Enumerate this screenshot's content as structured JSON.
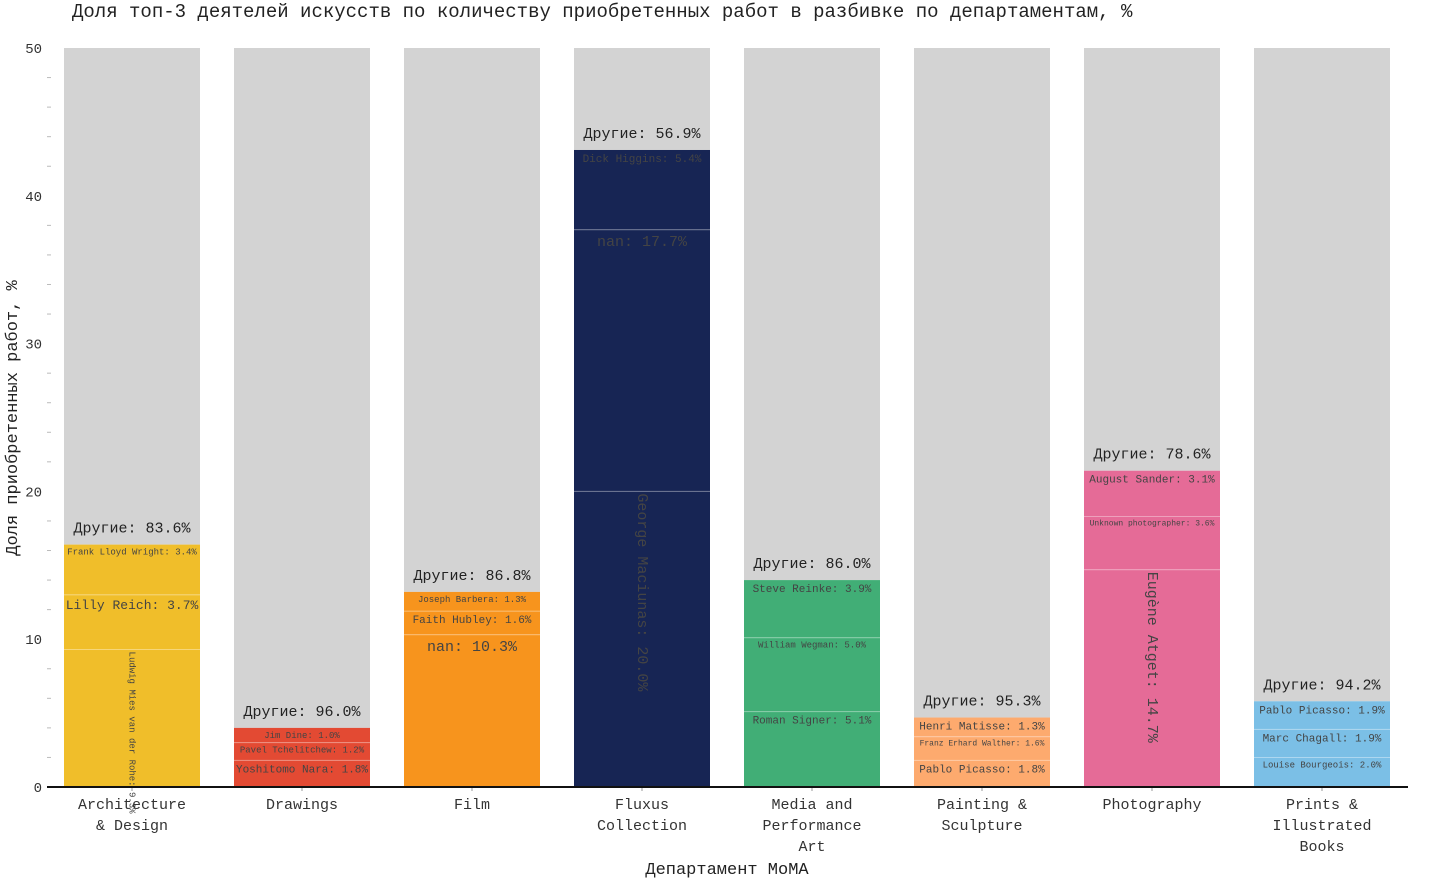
{
  "chart_data": {
    "type": "bar",
    "stacked": true,
    "title": "Доля топ-3 деятелей искусств по количеству приобретенных работ в разбивке по департаментам, %",
    "xlabel": "Департамент MoMA",
    "ylabel": "Доля приобретенных работ, %",
    "ylim": [
      0,
      50
    ],
    "yticks": [
      0,
      10,
      20,
      30,
      40,
      50
    ],
    "yminor_step": 2,
    "grid": false,
    "others_label": "Другие",
    "others_color": "#d3d3d3",
    "categories": [
      {
        "label": [
          "Architecture",
          "& Design"
        ],
        "color": "#f0be2a",
        "text_color": "#5a4a20",
        "others": 83.6,
        "segments": [
          {
            "name": "Ludwig Mies van der Rohe",
            "value": 9.3,
            "vertical": true,
            "size": "xs"
          },
          {
            "name": "Lilly Reich",
            "value": 3.7,
            "size": "md"
          },
          {
            "name": "Frank Lloyd Wright",
            "value": 3.4,
            "size": "xs"
          }
        ]
      },
      {
        "label": [
          "Drawings"
        ],
        "color": "#e34a33",
        "text_color": "#ffffff",
        "others": 96.0,
        "segments": [
          {
            "name": "Yoshitomo Nara",
            "value": 1.8,
            "size": "sm"
          },
          {
            "name": "Pavel Tchelitchew",
            "value": 1.2,
            "size": "xs"
          },
          {
            "name": "Jim Dine",
            "value": 1.0,
            "size": "xs"
          }
        ]
      },
      {
        "label": [
          "Film"
        ],
        "color": "#f7941d",
        "text_color": "#5a3a10",
        "others": 86.8,
        "segments": [
          {
            "name": "nan",
            "value": 10.3,
            "size": "lg"
          },
          {
            "name": "Faith Hubley",
            "value": 1.6,
            "size": "sm"
          },
          {
            "name": "Joseph Barbera",
            "value": 1.3,
            "size": "xs"
          }
        ]
      },
      {
        "label": [
          "Fluxus",
          "Collection"
        ],
        "color": "#172554",
        "text_color": "#dfe4f0",
        "others": 56.9,
        "segments": [
          {
            "name": "George Maciunas",
            "value": 20.0,
            "vertical": true,
            "size": "lg"
          },
          {
            "name": "nan",
            "value": 17.7,
            "size": "lg"
          },
          {
            "name": "Dick Higgins",
            "value": 5.4,
            "size": "sm"
          }
        ]
      },
      {
        "label": [
          "Media and",
          "Performance",
          "Art"
        ],
        "color": "#41ae76",
        "text_color": "#2d5a40",
        "others": 86.0,
        "segments": [
          {
            "name": "Roman Signer",
            "value": 5.1,
            "size": "sm"
          },
          {
            "name": "William Wegman",
            "value": 5.0,
            "size": "xs"
          },
          {
            "name": "Steve Reinke",
            "value": 3.9,
            "size": "sm"
          }
        ]
      },
      {
        "label": [
          "Painting &",
          "Sculpture"
        ],
        "color": "#fdaa6e",
        "text_color": "#6a4a30",
        "others": 95.3,
        "segments": [
          {
            "name": "Pablo Picasso",
            "value": 1.8,
            "size": "sm"
          },
          {
            "name": "Franz Erhard Walther",
            "value": 1.6,
            "size": "xxs"
          },
          {
            "name": "Henri Matisse",
            "value": 1.3,
            "size": "sm"
          }
        ]
      },
      {
        "label": [
          "Photography"
        ],
        "color": "#e56b97",
        "text_color": "#5a2a40",
        "others": 78.6,
        "segments": [
          {
            "name": "Eugène Atget",
            "value": 14.7,
            "vertical": true,
            "size": "lg"
          },
          {
            "name": "Unknown photographer",
            "value": 3.6,
            "size": "xxs"
          },
          {
            "name": "August Sander",
            "value": 3.1,
            "size": "sm"
          }
        ]
      },
      {
        "label": [
          "Prints &",
          "Illustrated",
          "Books"
        ],
        "color": "#7bbfe6",
        "text_color": "#2e4a60",
        "others": 94.2,
        "segments": [
          {
            "name": "Louise Bourgeois",
            "value": 2.0,
            "size": "xs"
          },
          {
            "name": "Marc Chagall",
            "value": 1.9,
            "size": "sm"
          },
          {
            "name": "Pablo Picasso",
            "value": 1.9,
            "size": "sm"
          }
        ]
      }
    ]
  }
}
